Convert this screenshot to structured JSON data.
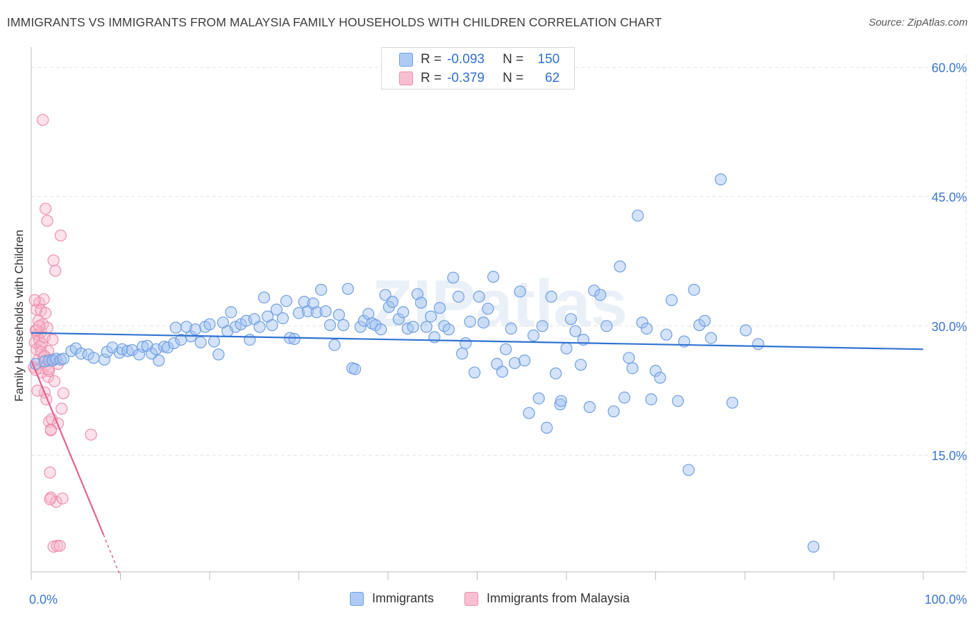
{
  "title": "IMMIGRANTS VS IMMIGRANTS FROM MALAYSIA FAMILY HOUSEHOLDS WITH CHILDREN CORRELATION CHART",
  "source": "Source: ZipAtlas.com",
  "watermark": "ZIPatlas",
  "legend": {
    "r_label": "R =",
    "n_label": "N =",
    "entries": [
      {
        "name": "Immigrants",
        "r": "-0.093",
        "n": "150",
        "fill": "#aecbf5",
        "stroke": "#6f9ee0"
      },
      {
        "name": "Immigrants from Malaysia",
        "r": "-0.379",
        "n": "62",
        "fill": "#f8bfd1",
        "stroke": "#e991ad"
      }
    ]
  },
  "colors": {
    "blue_fill": "rgba(159,193,242,0.45)",
    "blue_stroke": "#6f9ee0",
    "blue_line": "#2f72d2",
    "pink_fill": "rgba(248,182,203,0.40)",
    "pink_stroke": "#ec8fae",
    "pink_line": "#e2628f",
    "tick_label": "#3a76cf",
    "grid": "#e3e3e3"
  },
  "chart_data": {
    "type": "scatter",
    "ylabel": "Family Households with Children",
    "xlabel": "",
    "xlim": [
      0,
      100
    ],
    "ylim": [
      0,
      60
    ],
    "x_tick_labels": [
      {
        "value": 0,
        "label": "0.0%"
      },
      {
        "value": 100,
        "label": "100.0%"
      }
    ],
    "y_tick_labels": [
      {
        "value": 15,
        "label": "15.0%"
      },
      {
        "value": 30,
        "label": "30.0%"
      },
      {
        "value": 45,
        "label": "45.0%"
      },
      {
        "value": 60,
        "label": "60.0%"
      }
    ],
    "grid": true,
    "series": [
      {
        "name": "Immigrants",
        "trend": {
          "x": [
            0,
            100
          ],
          "y": [
            29.2,
            27.3
          ]
        },
        "points": [
          [
            0.5,
            25.6
          ],
          [
            1.5,
            25.9
          ],
          [
            2.0,
            26.0
          ],
          [
            2.4,
            26.0
          ],
          [
            2.8,
            26.2
          ],
          [
            3.3,
            26.1
          ],
          [
            3.6,
            26.2
          ],
          [
            4.5,
            27.1
          ],
          [
            5.0,
            27.4
          ],
          [
            5.6,
            26.8
          ],
          [
            6.4,
            26.7
          ],
          [
            7.0,
            26.3
          ],
          [
            8.2,
            26.1
          ],
          [
            8.5,
            27.0
          ],
          [
            9.1,
            27.5
          ],
          [
            9.9,
            26.9
          ],
          [
            10.2,
            27.3
          ],
          [
            10.8,
            27.1
          ],
          [
            11.3,
            27.2
          ],
          [
            12.1,
            26.7
          ],
          [
            12.5,
            27.6
          ],
          [
            13.0,
            27.7
          ],
          [
            13.5,
            26.8
          ],
          [
            14.0,
            27.3
          ],
          [
            14.3,
            26.0
          ],
          [
            14.9,
            27.6
          ],
          [
            15.3,
            27.5
          ],
          [
            16.0,
            28.0
          ],
          [
            16.2,
            29.8
          ],
          [
            16.8,
            28.4
          ],
          [
            17.4,
            29.9
          ],
          [
            17.9,
            28.8
          ],
          [
            18.4,
            29.6
          ],
          [
            19.0,
            28.1
          ],
          [
            19.5,
            29.9
          ],
          [
            20.0,
            30.2
          ],
          [
            20.5,
            28.2
          ],
          [
            21.0,
            26.7
          ],
          [
            21.5,
            30.4
          ],
          [
            22.0,
            29.4
          ],
          [
            22.4,
            31.6
          ],
          [
            22.9,
            29.9
          ],
          [
            23.5,
            30.2
          ],
          [
            24.1,
            30.6
          ],
          [
            24.5,
            28.4
          ],
          [
            25.0,
            30.8
          ],
          [
            25.6,
            29.9
          ],
          [
            26.1,
            33.3
          ],
          [
            26.5,
            31.1
          ],
          [
            27.0,
            30.1
          ],
          [
            27.5,
            31.9
          ],
          [
            28.2,
            30.9
          ],
          [
            28.6,
            32.9
          ],
          [
            29.0,
            28.6
          ],
          [
            29.5,
            28.5
          ],
          [
            30.0,
            31.5
          ],
          [
            30.6,
            32.8
          ],
          [
            31.0,
            31.7
          ],
          [
            31.6,
            32.6
          ],
          [
            32.0,
            31.6
          ],
          [
            32.5,
            34.2
          ],
          [
            33.0,
            31.7
          ],
          [
            33.5,
            30.1
          ],
          [
            34.0,
            27.8
          ],
          [
            34.5,
            31.3
          ],
          [
            35.0,
            30.1
          ],
          [
            35.5,
            34.3
          ],
          [
            36.0,
            25.1
          ],
          [
            36.3,
            25.0
          ],
          [
            36.9,
            29.9
          ],
          [
            37.3,
            30.6
          ],
          [
            37.8,
            31.4
          ],
          [
            38.2,
            30.3
          ],
          [
            38.6,
            30.1
          ],
          [
            39.2,
            29.6
          ],
          [
            39.7,
            33.6
          ],
          [
            40.1,
            32.2
          ],
          [
            40.5,
            32.8
          ],
          [
            41.2,
            30.8
          ],
          [
            41.7,
            31.6
          ],
          [
            42.2,
            29.7
          ],
          [
            42.8,
            29.9
          ],
          [
            43.3,
            33.7
          ],
          [
            43.7,
            32.7
          ],
          [
            44.3,
            29.9
          ],
          [
            44.8,
            31.1
          ],
          [
            45.2,
            28.7
          ],
          [
            45.8,
            32.1
          ],
          [
            46.3,
            30.0
          ],
          [
            46.8,
            29.6
          ],
          [
            47.3,
            35.6
          ],
          [
            47.9,
            33.4
          ],
          [
            48.3,
            26.8
          ],
          [
            48.7,
            28.0
          ],
          [
            49.2,
            30.5
          ],
          [
            49.7,
            24.6
          ],
          [
            50.2,
            33.4
          ],
          [
            50.7,
            30.4
          ],
          [
            51.2,
            32.0
          ],
          [
            51.8,
            35.7
          ],
          [
            52.2,
            25.6
          ],
          [
            52.8,
            24.7
          ],
          [
            53.2,
            27.3
          ],
          [
            53.8,
            29.7
          ],
          [
            54.2,
            25.7
          ],
          [
            54.8,
            34.0
          ],
          [
            55.3,
            26.0
          ],
          [
            55.8,
            19.9
          ],
          [
            56.3,
            28.9
          ],
          [
            56.9,
            21.6
          ],
          [
            57.3,
            30.0
          ],
          [
            57.8,
            18.2
          ],
          [
            58.3,
            33.4
          ],
          [
            58.8,
            24.5
          ],
          [
            59.3,
            20.9
          ],
          [
            59.4,
            21.3
          ],
          [
            60.0,
            27.4
          ],
          [
            60.5,
            30.8
          ],
          [
            61.0,
            29.4
          ],
          [
            61.6,
            25.5
          ],
          [
            61.9,
            28.4
          ],
          [
            62.6,
            20.6
          ],
          [
            63.1,
            34.1
          ],
          [
            63.8,
            33.6
          ],
          [
            64.5,
            30.0
          ],
          [
            65.3,
            20.1
          ],
          [
            66.0,
            36.9
          ],
          [
            66.5,
            21.7
          ],
          [
            67.0,
            26.3
          ],
          [
            67.4,
            25.1
          ],
          [
            68.0,
            42.8
          ],
          [
            68.5,
            30.4
          ],
          [
            69.0,
            29.7
          ],
          [
            69.5,
            21.5
          ],
          [
            70.0,
            24.8
          ],
          [
            70.5,
            24.0
          ],
          [
            71.2,
            29.0
          ],
          [
            71.8,
            33.0
          ],
          [
            72.5,
            21.3
          ],
          [
            73.2,
            28.2
          ],
          [
            73.7,
            13.3
          ],
          [
            74.3,
            34.2
          ],
          [
            74.9,
            30.1
          ],
          [
            75.5,
            30.6
          ],
          [
            76.2,
            28.6
          ],
          [
            77.3,
            47.0
          ],
          [
            78.6,
            21.1
          ],
          [
            80.1,
            29.5
          ],
          [
            81.5,
            27.9
          ],
          [
            87.7,
            4.4
          ]
        ]
      },
      {
        "name": "Immigrants from Malaysia",
        "trend": {
          "x": [
            0,
            8.1
          ],
          "y": [
            26.0,
            5.8
          ],
          "dashed_x": [
            8.1,
            10.0
          ],
          "dashed_y": [
            5.8,
            1.0
          ]
        },
        "points": [
          [
            0.3,
            25.2
          ],
          [
            0.4,
            28.1
          ],
          [
            0.5,
            29.5
          ],
          [
            0.6,
            31.9
          ],
          [
            0.6,
            27.3
          ],
          [
            0.7,
            29.0
          ],
          [
            0.8,
            26.1
          ],
          [
            0.8,
            30.6
          ],
          [
            0.9,
            32.7
          ],
          [
            0.9,
            28.4
          ],
          [
            1.0,
            27.6
          ],
          [
            1.0,
            25.1
          ],
          [
            1.1,
            29.3
          ],
          [
            1.1,
            31.8
          ],
          [
            1.2,
            24.6
          ],
          [
            1.2,
            27.9
          ],
          [
            1.3,
            30.2
          ],
          [
            1.3,
            53.9
          ],
          [
            1.4,
            33.1
          ],
          [
            1.4,
            26.4
          ],
          [
            1.5,
            28.7
          ],
          [
            1.5,
            22.3
          ],
          [
            1.6,
            31.5
          ],
          [
            1.6,
            43.6
          ],
          [
            1.7,
            25.5
          ],
          [
            1.7,
            21.5
          ],
          [
            1.8,
            29.8
          ],
          [
            1.8,
            42.2
          ],
          [
            1.9,
            24.1
          ],
          [
            1.9,
            27.1
          ],
          [
            2.0,
            18.9
          ],
          [
            2.0,
            24.8
          ],
          [
            2.1,
            13.0
          ],
          [
            2.2,
            18.0
          ],
          [
            2.2,
            10.1
          ],
          [
            2.3,
            26.1
          ],
          [
            2.3,
            19.2
          ],
          [
            2.4,
            28.4
          ],
          [
            2.5,
            37.6
          ],
          [
            2.5,
            4.4
          ],
          [
            2.6,
            23.6
          ],
          [
            2.7,
            36.4
          ],
          [
            2.8,
            9.6
          ],
          [
            2.9,
            4.5
          ],
          [
            3.0,
            25.6
          ],
          [
            3.0,
            18.7
          ],
          [
            3.2,
            4.5
          ],
          [
            3.3,
            40.5
          ],
          [
            3.4,
            20.4
          ],
          [
            3.5,
            10.0
          ],
          [
            3.6,
            22.2
          ],
          [
            6.7,
            17.4
          ],
          [
            0.4,
            33.0
          ],
          [
            0.5,
            24.9
          ],
          [
            0.6,
            29.5
          ],
          [
            0.7,
            22.5
          ],
          [
            0.9,
            30.0
          ],
          [
            1.1,
            27.0
          ],
          [
            1.5,
            26.5
          ],
          [
            1.9,
            25.0
          ],
          [
            2.1,
            9.9
          ],
          [
            2.2,
            17.9
          ]
        ]
      }
    ]
  }
}
